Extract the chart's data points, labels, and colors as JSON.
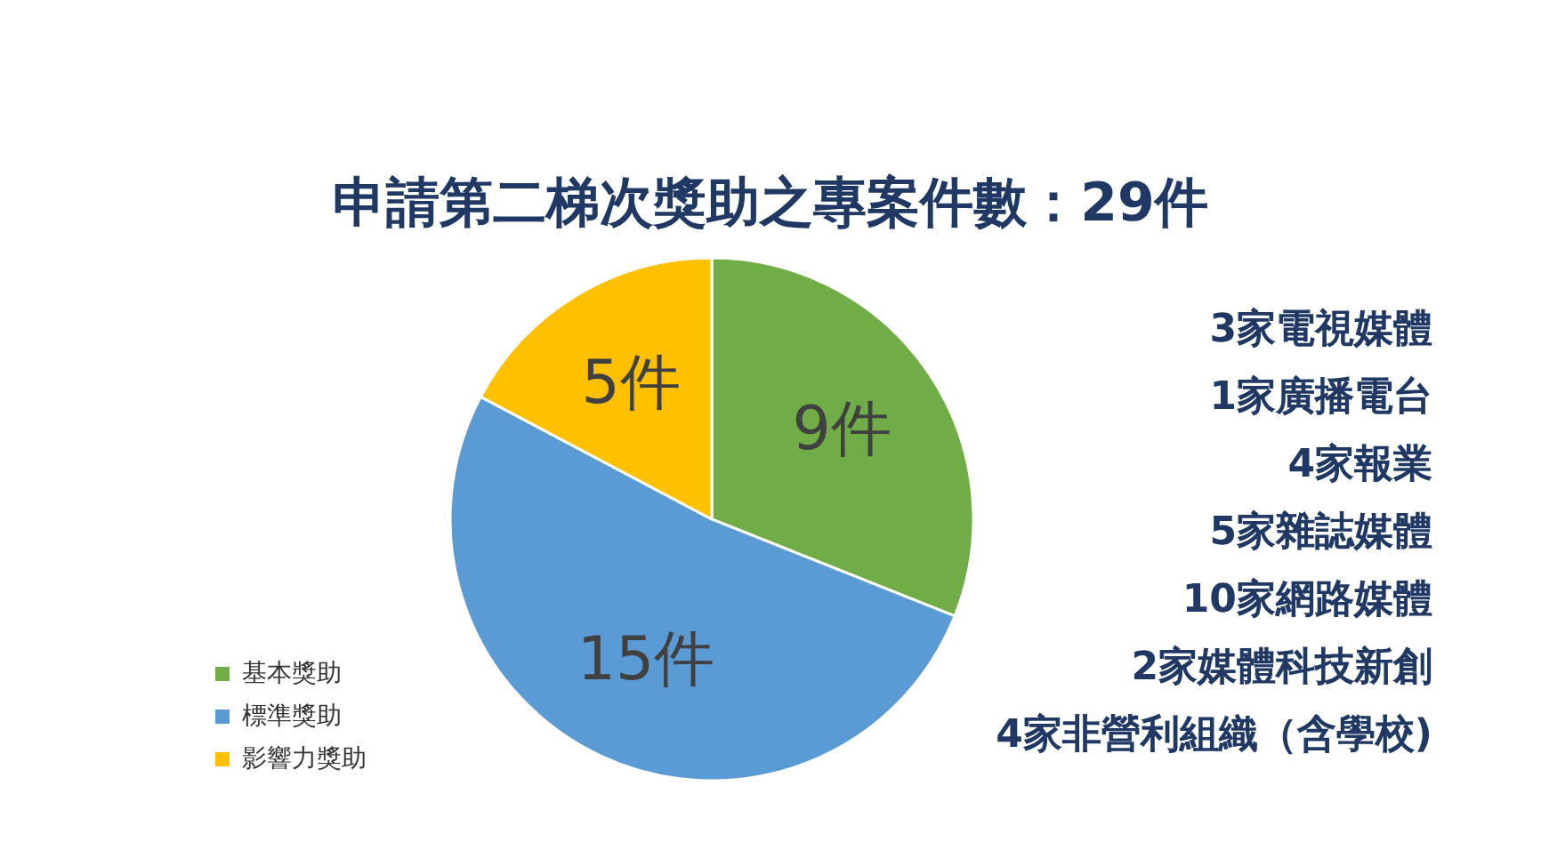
{
  "chart_data": {
    "type": "pie",
    "title": "申請第二梯次獎助之專案件數：29件",
    "categories": [
      "基本獎助",
      "標準獎助",
      "影響力獎助"
    ],
    "values": [
      9,
      15,
      5
    ],
    "colors": [
      "#70ad47",
      "#5b9bd5",
      "#ffc000"
    ],
    "value_labels": [
      "9件",
      "15件",
      "5件"
    ],
    "legend": "bottom left",
    "annotations": [
      "3家電視媒體",
      "1家廣播電台",
      "4家報業",
      "5家雜誌媒體",
      "10家網路媒體",
      "2家媒體科技新創",
      "4家非營利組織（含學校)"
    ]
  }
}
